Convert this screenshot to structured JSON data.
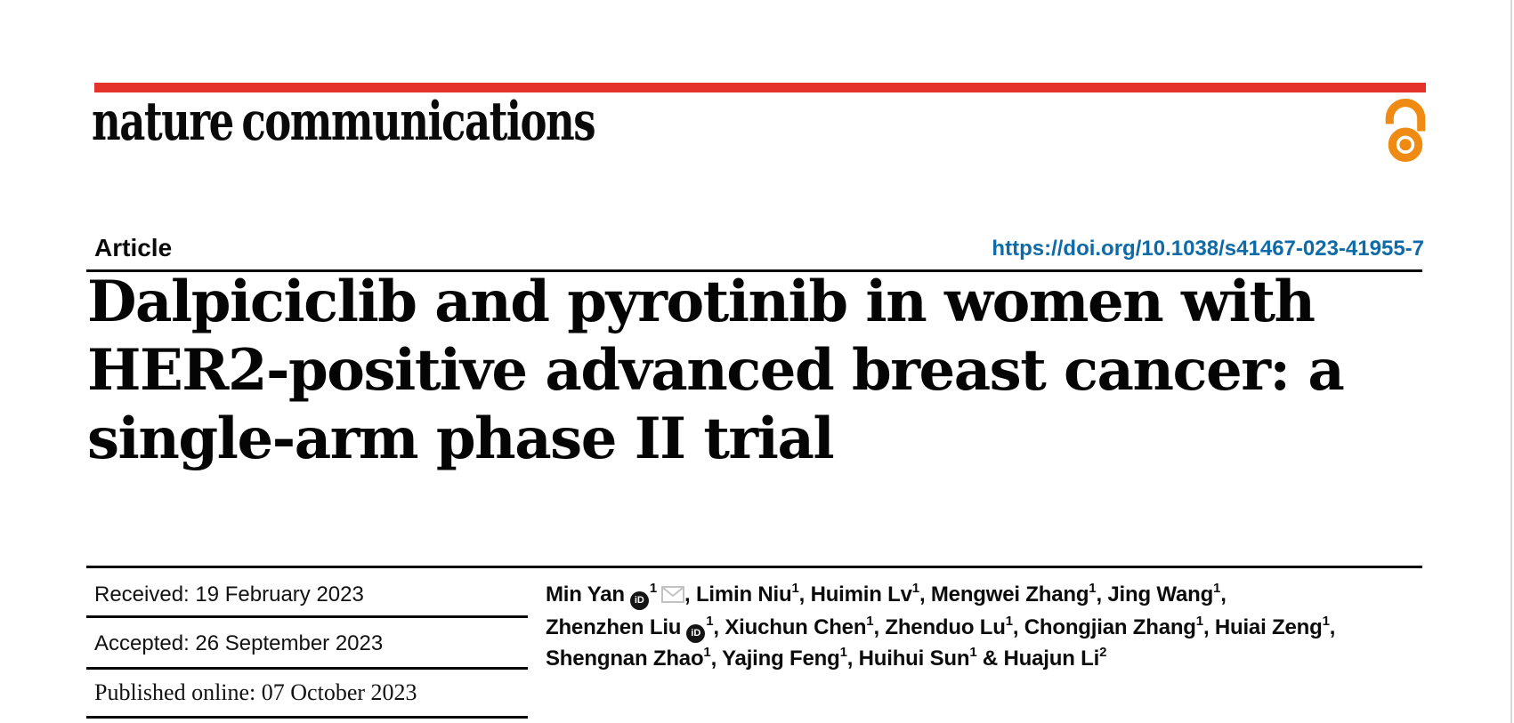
{
  "masthead": {
    "wordmark": "nature communications",
    "open_access_icon": "open padlock"
  },
  "article_header": {
    "kicker": "Article",
    "doi": "https://doi.org/10.1038/s41467-023-41955-7"
  },
  "title_lines": [
    "Dalpiciclib and pyrotinib in women with",
    "HER2-positive advanced breast cancer: a",
    "single-arm phase II trial"
  ],
  "history": [
    "Received: 19 February 2023",
    "Accepted: 26 September 2023",
    "Published online: 07 October 2023"
  ],
  "authors": [
    {
      "name": "Min Yan",
      "sup": "1",
      "orcid": true,
      "envelope": true,
      "sep": ","
    },
    {
      "name": "Limin Niu",
      "sup": "1",
      "sep": ","
    },
    {
      "name": "Huimin Lv",
      "sup": "1",
      "sep": ","
    },
    {
      "name": "Mengwei Zhang",
      "sup": "1",
      "sep": ","
    },
    {
      "name": "Jing Wang",
      "sup": "1",
      "sep": ",",
      "br": true
    },
    {
      "name": "Zhenzhen Liu",
      "sup": "1",
      "orcid": true,
      "sep": ","
    },
    {
      "name": "Xiuchun Chen",
      "sup": "1",
      "sep": ","
    },
    {
      "name": "Zhenduo Lu",
      "sup": "1",
      "sep": ","
    },
    {
      "name": "Chongjian Zhang",
      "sup": "1",
      "sep": ","
    },
    {
      "name": "Huiai Zeng",
      "sup": "1",
      "sep": ",",
      "br": true
    },
    {
      "name": "Shengnan Zhao",
      "sup": "1",
      "sep": ","
    },
    {
      "name": "Yajing Feng",
      "sup": "1",
      "sep": ","
    },
    {
      "name": "Huihui Sun",
      "sup": "1",
      "sep": " &"
    },
    {
      "name": "Huajun Li",
      "sup": "2",
      "sep": ""
    }
  ],
  "icons": {
    "orcid_label": "iD",
    "envelope_icon": "email envelope",
    "open_access_icon": "open access padlock"
  },
  "colors": {
    "accent_red": "#e4332b",
    "link_blue": "#0e6ba8",
    "open_access_orange": "#ef8a12",
    "rule_black": "#060606",
    "envelope_gray": "#c3c3c3"
  }
}
